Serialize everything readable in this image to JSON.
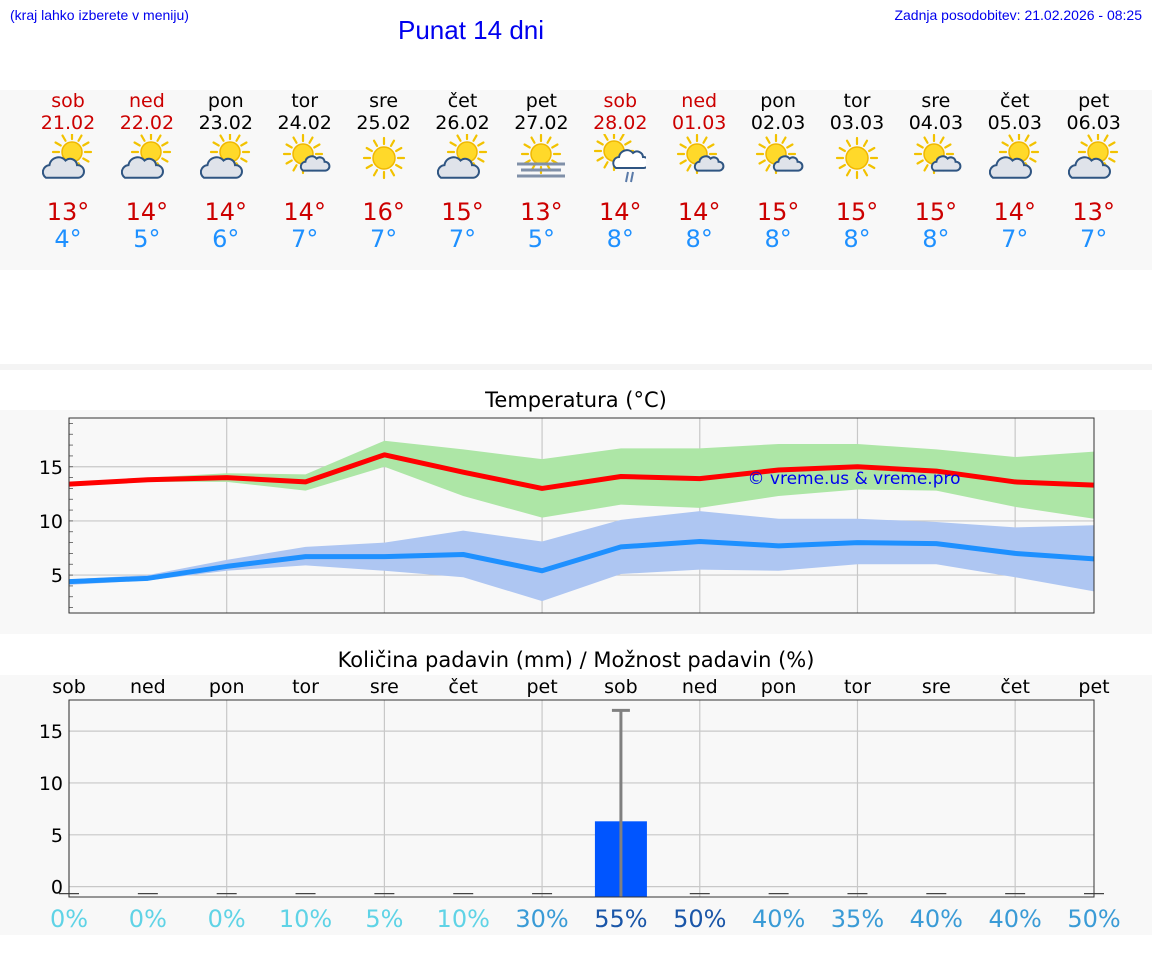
{
  "header": {
    "hint": "(kraj lahko izberete v meniju)",
    "title": "Punat 14 dni",
    "updated": "Zadnja posodobitev: 21.02.2026 - 08:25"
  },
  "days": [
    {
      "name": "sob",
      "date": "21.02",
      "max": "13°",
      "min": "4°",
      "weekend": true,
      "icon": "sun-cloud"
    },
    {
      "name": "ned",
      "date": "22.02",
      "max": "14°",
      "min": "5°",
      "weekend": true,
      "icon": "sun-cloud"
    },
    {
      "name": "pon",
      "date": "23.02",
      "max": "14°",
      "min": "6°",
      "weekend": false,
      "icon": "sun-cloud"
    },
    {
      "name": "tor",
      "date": "24.02",
      "max": "14°",
      "min": "7°",
      "weekend": false,
      "icon": "sun-small-cloud"
    },
    {
      "name": "sre",
      "date": "25.02",
      "max": "16°",
      "min": "7°",
      "weekend": false,
      "icon": "sun"
    },
    {
      "name": "čet",
      "date": "26.02",
      "max": "15°",
      "min": "7°",
      "weekend": false,
      "icon": "sun-cloud"
    },
    {
      "name": "pet",
      "date": "27.02",
      "max": "13°",
      "min": "5°",
      "weekend": false,
      "icon": "sun-fog"
    },
    {
      "name": "sob",
      "date": "28.02",
      "max": "14°",
      "min": "8°",
      "weekend": true,
      "icon": "sun-rain"
    },
    {
      "name": "ned",
      "date": "01.03",
      "max": "14°",
      "min": "8°",
      "weekend": true,
      "icon": "sun-small-cloud"
    },
    {
      "name": "pon",
      "date": "02.03",
      "max": "15°",
      "min": "8°",
      "weekend": false,
      "icon": "sun-small-cloud"
    },
    {
      "name": "tor",
      "date": "03.03",
      "max": "15°",
      "min": "8°",
      "weekend": false,
      "icon": "sun"
    },
    {
      "name": "sre",
      "date": "04.03",
      "max": "15°",
      "min": "8°",
      "weekend": false,
      "icon": "sun-small-cloud"
    },
    {
      "name": "čet",
      "date": "05.03",
      "max": "14°",
      "min": "7°",
      "weekend": false,
      "icon": "sun-cloud"
    },
    {
      "name": "pet",
      "date": "06.03",
      "max": "13°",
      "min": "7°",
      "weekend": false,
      "icon": "sun-cloud"
    }
  ],
  "colors": {
    "max_line": "#ff0000",
    "max_band": "#ade6a6",
    "min_line": "#1e90ff",
    "min_band": "#aec6f2",
    "bar": "#0055ff",
    "whisker": "#808080",
    "weekend": "#cc0000",
    "copyright": "#0000ee"
  },
  "chart_data": [
    {
      "type": "line",
      "title": "Temperatura (°C)",
      "xlabel": "",
      "ylabel": "",
      "ylim": [
        1.5,
        19.5
      ],
      "yticks": [
        5,
        10,
        15
      ],
      "x": [
        "sob",
        "ned",
        "pon",
        "tor",
        "sre",
        "čet",
        "pet",
        "sob",
        "ned",
        "pon",
        "tor",
        "sre",
        "čet",
        "pet"
      ],
      "annotation": "© vreme.us & vreme.pro",
      "series": [
        {
          "name": "max",
          "values": [
            13.4,
            13.8,
            14.0,
            13.6,
            16.1,
            14.5,
            13.0,
            14.1,
            13.9,
            14.7,
            15.0,
            14.6,
            13.6,
            13.3
          ],
          "band_low": [
            13.3,
            13.6,
            13.6,
            12.8,
            15.0,
            12.3,
            10.3,
            11.5,
            11.2,
            12.3,
            12.9,
            12.8,
            11.3,
            10.2
          ],
          "band_high": [
            13.5,
            14.0,
            14.4,
            14.3,
            17.4,
            16.6,
            15.7,
            16.7,
            16.7,
            17.1,
            17.1,
            16.6,
            15.9,
            16.4
          ]
        },
        {
          "name": "min",
          "values": [
            4.4,
            4.7,
            5.8,
            6.7,
            6.7,
            6.9,
            5.4,
            7.6,
            8.1,
            7.7,
            8.0,
            7.9,
            7.0,
            6.5
          ],
          "band_low": [
            4.1,
            4.5,
            5.4,
            5.9,
            5.4,
            4.8,
            2.6,
            5.1,
            5.5,
            5.4,
            6.0,
            6.0,
            4.8,
            3.5
          ],
          "band_high": [
            4.6,
            5.0,
            6.4,
            7.6,
            8.0,
            9.1,
            8.1,
            10.1,
            10.9,
            10.2,
            10.2,
            9.9,
            9.4,
            9.6
          ]
        }
      ]
    },
    {
      "type": "bar",
      "title": "Količina padavin (mm) / Možnost padavin (%)",
      "categories": [
        "sob",
        "ned",
        "pon",
        "tor",
        "sre",
        "čet",
        "pet",
        "sob",
        "ned",
        "pon",
        "tor",
        "sre",
        "čet",
        "pet"
      ],
      "ylim": [
        -1,
        18
      ],
      "yticks": [
        0,
        5,
        10,
        15
      ],
      "values": [
        0,
        0,
        0,
        0,
        0,
        0,
        0,
        6.3,
        0,
        0,
        0,
        0,
        0,
        0
      ],
      "upper": [
        0,
        0,
        0,
        0,
        0,
        0,
        0,
        17.0,
        0,
        0,
        0,
        0,
        0,
        0
      ],
      "probability": [
        "0%",
        "0%",
        "0%",
        "10%",
        "5%",
        "10%",
        "30%",
        "55%",
        "50%",
        "40%",
        "35%",
        "40%",
        "40%",
        "50%"
      ],
      "probability_colors": [
        "#5fd3e6",
        "#5fd3e6",
        "#5fd3e6",
        "#5fd3e6",
        "#5fd3e6",
        "#5fd3e6",
        "#3a9bd6",
        "#1a56a8",
        "#1a56a8",
        "#3a9bd6",
        "#3a9bd6",
        "#3a9bd6",
        "#3a9bd6",
        "#3a9bd6"
      ]
    }
  ]
}
